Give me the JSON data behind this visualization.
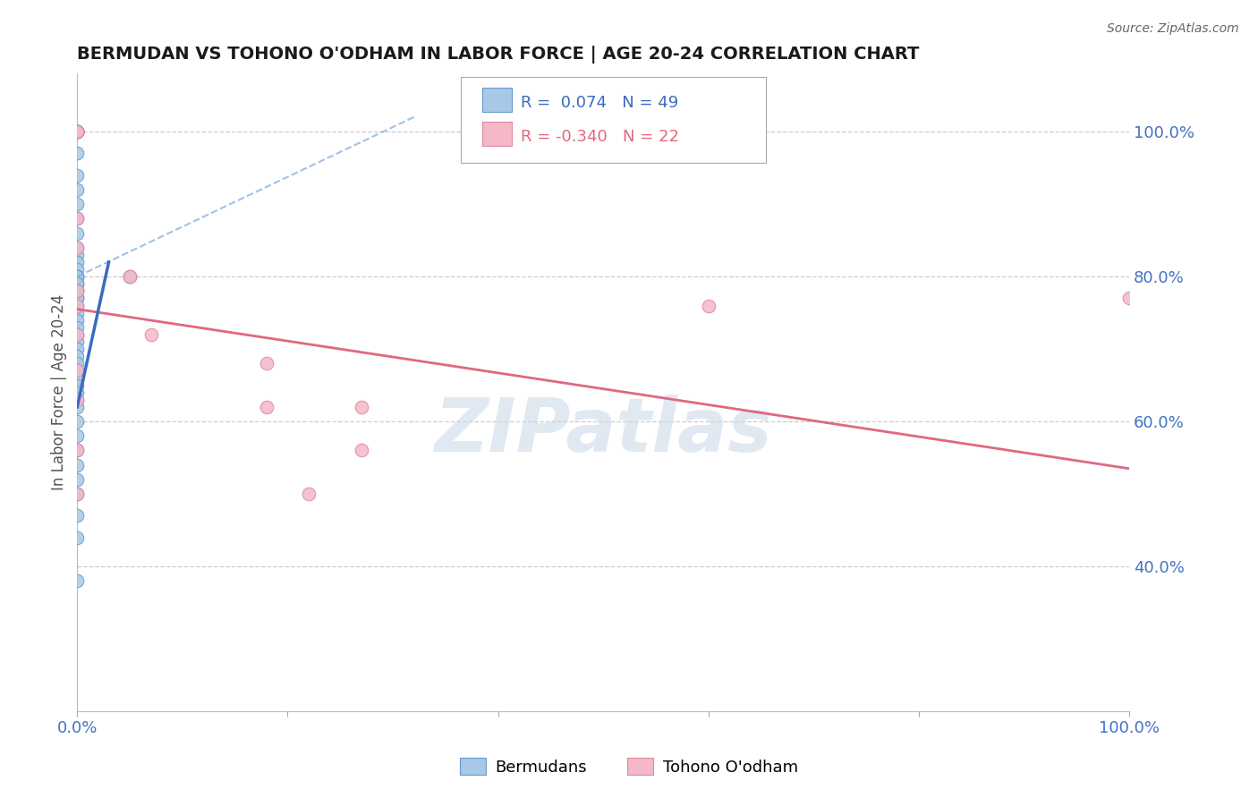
{
  "title": "BERMUDAN VS TOHONO O'ODHAM IN LABOR FORCE | AGE 20-24 CORRELATION CHART",
  "source": "Source: ZipAtlas.com",
  "ylabel": "In Labor Force | Age 20-24",
  "xlim": [
    0.0,
    1.0
  ],
  "ylim": [
    0.2,
    1.08
  ],
  "xticks": [
    0.0,
    0.2,
    0.4,
    0.6,
    0.8,
    1.0
  ],
  "xticklabels": [
    "0.0%",
    "",
    "",
    "",
    "",
    "100.0%"
  ],
  "ytick_positions": [
    0.4,
    0.6,
    0.8,
    1.0
  ],
  "ytick_labels": [
    "40.0%",
    "60.0%",
    "80.0%",
    "100.0%"
  ],
  "blue_R": 0.074,
  "blue_N": 49,
  "pink_R": -0.34,
  "pink_N": 22,
  "blue_scatter_x": [
    0.0,
    0.0,
    0.0,
    0.0,
    0.0,
    0.0,
    0.0,
    0.0,
    0.0,
    0.0,
    0.0,
    0.0,
    0.0,
    0.0,
    0.0,
    0.0,
    0.0,
    0.0,
    0.0,
    0.0,
    0.0,
    0.0,
    0.0,
    0.0,
    0.0,
    0.0,
    0.0,
    0.0,
    0.0,
    0.0,
    0.0,
    0.0,
    0.0,
    0.0,
    0.0,
    0.0,
    0.0,
    0.0,
    0.0,
    0.0,
    0.0,
    0.0,
    0.0,
    0.0,
    0.0,
    0.0,
    0.0,
    0.0,
    0.05
  ],
  "blue_scatter_y": [
    1.0,
    1.0,
    1.0,
    1.0,
    1.0,
    0.97,
    0.94,
    0.92,
    0.9,
    0.88,
    0.86,
    0.84,
    0.83,
    0.82,
    0.81,
    0.8,
    0.8,
    0.79,
    0.78,
    0.77,
    0.76,
    0.75,
    0.74,
    0.73,
    0.72,
    0.71,
    0.7,
    0.69,
    0.68,
    0.67,
    0.66,
    0.65,
    0.64,
    0.63,
    0.62,
    0.6,
    0.58,
    0.56,
    0.54,
    0.52,
    0.5,
    0.47,
    0.44,
    0.8,
    0.79,
    0.78,
    0.77,
    0.38,
    0.8
  ],
  "pink_scatter_x": [
    0.0,
    0.0,
    0.0,
    0.0,
    0.0,
    0.0,
    0.0,
    0.0,
    0.0,
    0.0,
    0.0,
    0.0,
    0.0,
    0.05,
    0.07,
    0.18,
    0.18,
    0.6,
    1.0,
    0.27,
    0.27,
    0.22
  ],
  "pink_scatter_y": [
    1.0,
    1.0,
    1.0,
    1.0,
    0.88,
    0.84,
    0.78,
    0.72,
    0.67,
    0.63,
    0.56,
    0.5,
    0.76,
    0.8,
    0.72,
    0.68,
    0.62,
    0.76,
    0.77,
    0.62,
    0.56,
    0.5
  ],
  "blue_solid_line_x": [
    0.0,
    0.03
  ],
  "blue_solid_line_y": [
    0.62,
    0.82
  ],
  "blue_dashed_line_x": [
    0.0,
    0.32
  ],
  "blue_dashed_line_y": [
    0.8,
    1.02
  ],
  "pink_line_x": [
    0.0,
    1.0
  ],
  "pink_line_y": [
    0.755,
    0.535
  ],
  "blue_color": "#a8c8e8",
  "blue_edge_color": "#6699cc",
  "pink_color": "#f5b8c8",
  "pink_edge_color": "#dd88a0",
  "blue_trend_color": "#3a6bbf",
  "blue_dashed_color": "#7aa8d8",
  "pink_trend_color": "#e06880",
  "watermark_text": "ZIPatlas",
  "watermark_color": "#c8d8e8",
  "watermark_fontsize": 60,
  "grid_color": "#cccccc",
  "tick_color": "#4472c4",
  "title_color": "#1a1a1a",
  "ylabel_color": "#555555",
  "source_color": "#666666"
}
